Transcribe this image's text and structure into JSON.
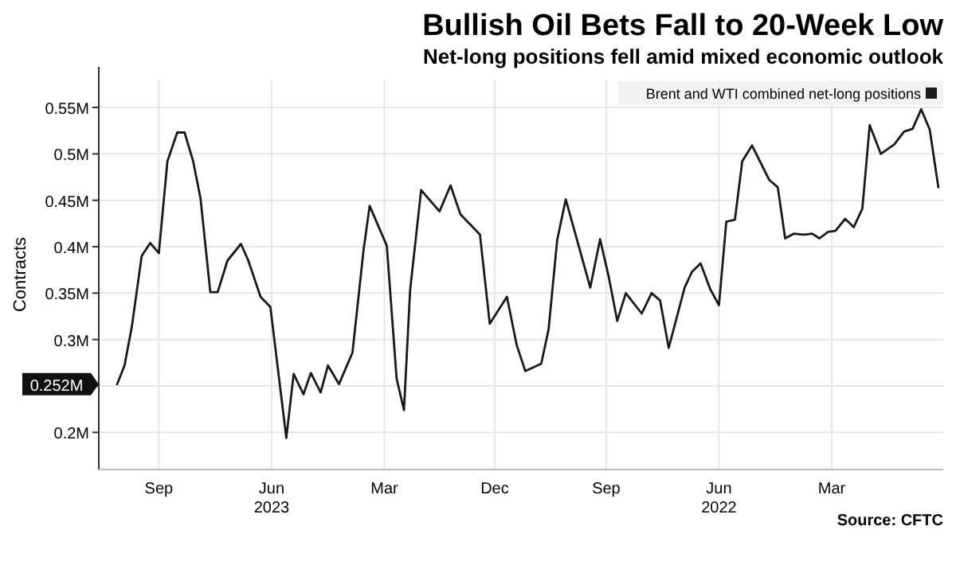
{
  "chart_data": {
    "type": "line",
    "title": "Bullish Oil Bets Fall to 20-Week Low",
    "subtitle": "Net-long positions fell amid mixed economic outlook",
    "ylabel": "Contracts",
    "annotations": [
      "Source: CFTC",
      "0.252M"
    ],
    "legend": "top right",
    "grid": true,
    "line_style": "solid",
    "xlim": [
      "2023-11-03",
      "2021-12-14"
    ],
    "ylim": [
      0.16,
      0.58
    ],
    "xticks": [
      {
        "value": "2023-09-15",
        "label": "Sep"
      },
      {
        "value": "2023-06-15",
        "label": "Jun\n2023"
      },
      {
        "value": "2023-03-15",
        "label": "Mar"
      },
      {
        "value": "2022-12-15",
        "label": "Dec"
      },
      {
        "value": "2022-09-15",
        "label": "Sep"
      },
      {
        "value": "2022-06-15",
        "label": "Jun\n2022"
      },
      {
        "value": "2022-03-15",
        "label": "Mar"
      }
    ],
    "yticks": [
      {
        "value": 0.2,
        "label": "0.2M"
      },
      {
        "value": 0.25,
        "label": null
      },
      {
        "value": 0.3,
        "label": "0.3M"
      },
      {
        "value": 0.35,
        "label": "0.35M"
      },
      {
        "value": 0.4,
        "label": "0.4M"
      },
      {
        "value": 0.45,
        "label": "0.45M"
      },
      {
        "value": 0.5,
        "label": "0.5M"
      },
      {
        "value": 0.55,
        "label": "0.55M"
      }
    ],
    "series": [
      {
        "name": "Brent and WTI combined net-long positions",
        "color": "#1a1a1a",
        "x": [
          "2021-12-18",
          "2021-12-25",
          "2022-01-01",
          "2022-01-08",
          "2022-01-15",
          "2022-01-23",
          "2022-02-03",
          "2022-02-12",
          "2022-02-18",
          "2022-02-25",
          "2022-03-04",
          "2022-03-12",
          "2022-03-18",
          "2022-03-25",
          "2022-03-31",
          "2022-04-07",
          "2022-04-15",
          "2022-04-22",
          "2022-04-28",
          "2022-05-05",
          "2022-05-19",
          "2022-05-27",
          "2022-06-02",
          "2022-06-09",
          "2022-06-15",
          "2022-06-22",
          "2022-06-30",
          "2022-07-07",
          "2022-07-13",
          "2022-07-26",
          "2022-08-02",
          "2022-08-09",
          "2022-08-17",
          "2022-08-30",
          "2022-09-06",
          "2022-09-13",
          "2022-09-20",
          "2022-09-28",
          "2022-10-18",
          "2022-10-25",
          "2022-11-01",
          "2022-11-07",
          "2022-11-20",
          "2022-11-27",
          "2022-12-05",
          "2022-12-19",
          "2022-12-27",
          "2023-01-12",
          "2023-01-20",
          "2023-01-29",
          "2023-02-13",
          "2023-02-22",
          "2023-02-27",
          "2023-03-05",
          "2023-03-13",
          "2023-03-27",
          "2023-04-01",
          "2023-04-10",
          "2023-04-21",
          "2023-04-30",
          "2023-05-06",
          "2023-05-14",
          "2023-05-20",
          "2023-05-28",
          "2023-06-03",
          "2023-06-16",
          "2023-06-24",
          "2023-07-04",
          "2023-07-10",
          "2023-07-21",
          "2023-07-29",
          "2023-08-04",
          "2023-08-12",
          "2023-08-18",
          "2023-08-25",
          "2023-08-31",
          "2023-09-08",
          "2023-09-15",
          "2023-09-22",
          "2023-09-29",
          "2023-10-07",
          "2023-10-13",
          "2023-10-19"
        ],
        "values": [
          0.464,
          0.526,
          0.548,
          0.527,
          0.524,
          0.51,
          0.5,
          0.531,
          0.441,
          0.421,
          0.43,
          0.417,
          0.416,
          0.409,
          0.414,
          0.413,
          0.414,
          0.409,
          0.464,
          0.472,
          0.509,
          0.492,
          0.429,
          0.427,
          0.337,
          0.354,
          0.382,
          0.373,
          0.356,
          0.291,
          0.342,
          0.35,
          0.328,
          0.35,
          0.32,
          0.368,
          0.408,
          0.356,
          0.451,
          0.407,
          0.311,
          0.274,
          0.266,
          0.294,
          0.346,
          0.317,
          0.413,
          0.435,
          0.466,
          0.438,
          0.461,
          0.353,
          0.224,
          0.258,
          0.401,
          0.444,
          0.396,
          0.286,
          0.252,
          0.272,
          0.243,
          0.264,
          0.241,
          0.263,
          0.194,
          0.335,
          0.346,
          0.385,
          0.403,
          0.385,
          0.351,
          0.351,
          0.452,
          0.492,
          0.523,
          0.523,
          0.492,
          0.393,
          0.404,
          0.39,
          0.314,
          0.272,
          0.252
        ]
      }
    ]
  }
}
